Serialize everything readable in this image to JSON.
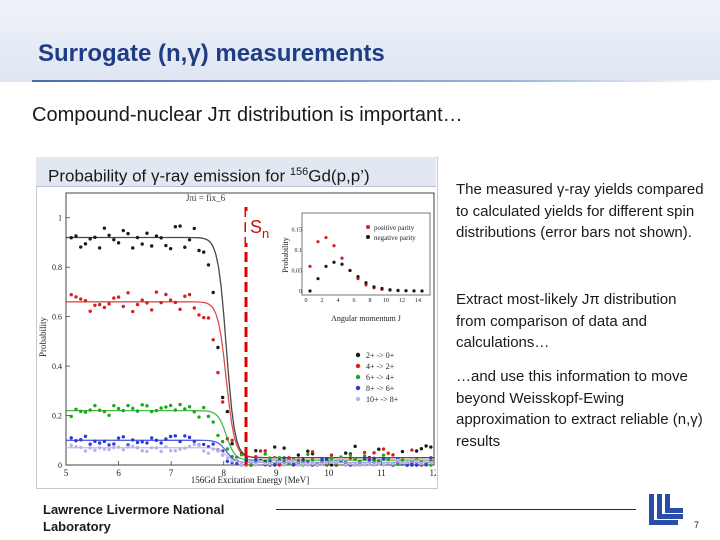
{
  "slide": {
    "title": "Surrogate (n,γ) measurements",
    "subtitle": "Compound-nuclear Jπ distribution is important…"
  },
  "figure": {
    "caption_pre": "Probability of γ-ray emission for ",
    "caption_sup": "156",
    "caption_post": "Gd(p,p’)",
    "sn_label": "S",
    "sn_sub": "n",
    "plot_title": "Jπi = fix_6",
    "ylabel": "Probability",
    "xlabel": "156Gd Excitation Energy [MeV]",
    "x_ticks": [
      "5",
      "6",
      "7",
      "8",
      "9",
      "10",
      "11",
      "12"
    ],
    "y_ticks": [
      "1",
      "0.8",
      "0.6",
      "0.4",
      "0.2",
      "0"
    ],
    "legend": [
      "2+ -> 0+",
      "4+ -> 2+",
      "6+ -> 4+",
      "8+ -> 6+",
      "10+ -> 8+"
    ],
    "inset": {
      "ylabel": "Probability",
      "xlabel": "Angular momentum J",
      "legend": [
        "positive parity",
        "negative parity"
      ],
      "x_ticks": [
        "0",
        "2",
        "4",
        "6",
        "8",
        "10",
        "12",
        "14"
      ],
      "y_ticks": [
        "0.15",
        "0.1",
        "0.05",
        "0"
      ]
    },
    "colors": {
      "series_black": "#1a1a1a",
      "series_red": "#d42020",
      "series_green": "#1aa81a",
      "series_blue": "#2a3ad8",
      "series_lavender": "#b8b2e8",
      "sn_line": "#e00000"
    }
  },
  "right_text": {
    "p1": "The measured γ-ray yields compared to calculated yields for different spin distributions (error bars not shown).",
    "p2": "Extract most-likely Jπ distribution from comparison of data and calculations…",
    "p3": "…and use this information to move beyond Weisskopf-Ewing approximation to extract reliable (n,γ) results"
  },
  "footer": {
    "org": "Lawrence Livermore National Laboratory",
    "page": "7"
  }
}
